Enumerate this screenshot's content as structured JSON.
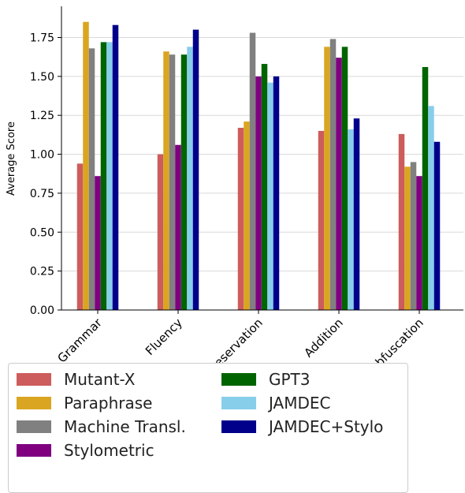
{
  "chart_data": {
    "type": "bar",
    "title": "",
    "xlabel": "",
    "ylabel": "Average Score",
    "ylim": [
      0,
      1.95
    ],
    "yticks": [
      "0.00",
      "0.25",
      "0.50",
      "0.75",
      "1.00",
      "1.25",
      "1.50",
      "1.75"
    ],
    "grid": "y",
    "legend_position": "bottom",
    "categories": [
      "Grammar",
      "Fluency",
      "Preservation",
      "Addition",
      "Obfuscation"
    ],
    "series": [
      {
        "name": "Mutant-X",
        "color": "#cd5c5c",
        "values": [
          0.94,
          1.0,
          1.17,
          1.15,
          1.13
        ]
      },
      {
        "name": "Paraphrase",
        "color": "#daa520",
        "values": [
          1.85,
          1.66,
          1.21,
          1.69,
          0.92
        ]
      },
      {
        "name": "Machine Transl.",
        "color": "#808080",
        "values": [
          1.68,
          1.64,
          1.78,
          1.74,
          0.95
        ]
      },
      {
        "name": "Stylometric",
        "color": "#800080",
        "values": [
          0.86,
          1.06,
          1.5,
          1.62,
          0.86
        ]
      },
      {
        "name": "GPT3",
        "color": "#006400",
        "values": [
          1.72,
          1.64,
          1.58,
          1.69,
          1.56
        ]
      },
      {
        "name": "JAMDEC",
        "color": "#87ceeb",
        "values": [
          1.72,
          1.69,
          1.46,
          1.16,
          1.31
        ]
      },
      {
        "name": "JAMDEC+Stylo",
        "color": "#00008b",
        "values": [
          1.83,
          1.8,
          1.5,
          1.23,
          1.08
        ]
      }
    ]
  }
}
